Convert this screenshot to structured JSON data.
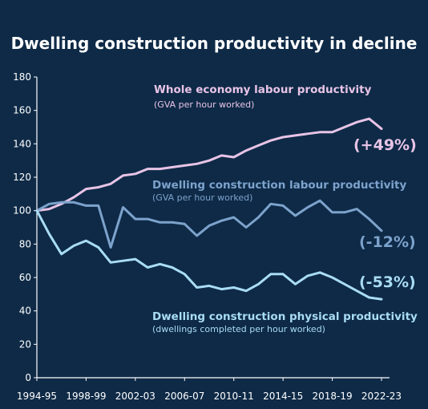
{
  "title": "Dwelling construction productivity in decline",
  "chart_data": {
    "type": "line",
    "title": "Dwelling construction productivity in decline",
    "xlabel": "",
    "ylabel": "",
    "ylim": [
      0,
      180
    ],
    "yticks": [
      "0",
      "20",
      "40",
      "60",
      "80",
      "100",
      "120",
      "140",
      "160",
      "180"
    ],
    "x": [
      "1994-95",
      "1995-96",
      "1996-97",
      "1997-98",
      "1998-99",
      "1999-00",
      "2000-01",
      "2001-02",
      "2002-03",
      "2003-04",
      "2004-05",
      "2005-06",
      "2006-07",
      "2007-08",
      "2008-09",
      "2009-10",
      "2010-11",
      "2011-12",
      "2012-13",
      "2013-14",
      "2014-15",
      "2015-16",
      "2016-17",
      "2017-18",
      "2018-19",
      "2019-20",
      "2020-21",
      "2021-22",
      "2022-23"
    ],
    "xtick_labels": [
      "1994-95",
      "1998-99",
      "2002-03",
      "2006-07",
      "2010-11",
      "2014-15",
      "2018-19",
      "2022-23"
    ],
    "grid": false,
    "series": [
      {
        "name": "Whole economy labour productivity",
        "subtitle": "(GVA per hour worked)",
        "change_label": "(+49%)",
        "color": "#e8c4e6",
        "values": [
          100,
          101,
          104,
          108,
          113,
          114,
          116,
          121,
          122,
          125,
          125,
          126,
          127,
          128,
          130,
          133,
          132,
          136,
          139,
          142,
          144,
          145,
          146,
          147,
          147,
          150,
          153,
          155,
          149
        ]
      },
      {
        "name": "Dwelling construction labour productivity",
        "subtitle": "(GVA per hour worked)",
        "change_label": "(-12%)",
        "color": "#7da3cc",
        "values": [
          100,
          104,
          105,
          105,
          103,
          103,
          78,
          102,
          95,
          95,
          93,
          93,
          92,
          85,
          91,
          94,
          96,
          90,
          96,
          104,
          103,
          97,
          102,
          106,
          99,
          99,
          101,
          95,
          88
        ]
      },
      {
        "name": "Dwelling construction physical productivity",
        "subtitle": "(dwellings completed per hour worked)",
        "change_label": "(-53%)",
        "color": "#a9dcf5",
        "values": [
          100,
          86,
          74,
          79,
          82,
          78,
          69,
          70,
          71,
          66,
          68,
          66,
          62,
          54,
          55,
          53,
          54,
          52,
          56,
          62,
          62,
          56,
          61,
          63,
          60,
          56,
          52,
          48,
          47
        ]
      }
    ]
  }
}
